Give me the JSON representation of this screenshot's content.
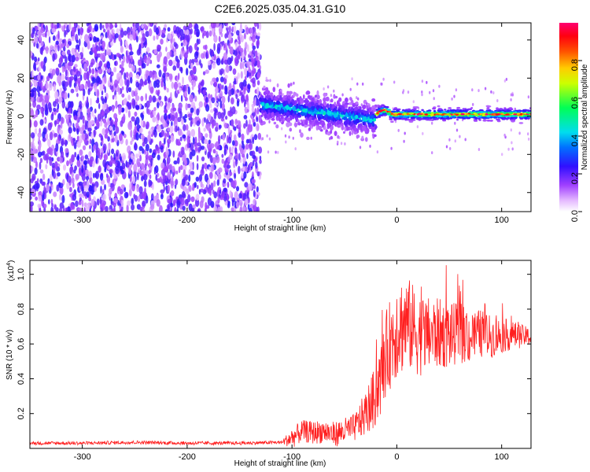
{
  "figure_title": "C2E6.2025.035.04.31.G10",
  "chart_data": [
    {
      "type": "heatmap",
      "title": "C2E6.2025.035.04.31.G10",
      "xlabel": "Height of straight line (km)",
      "ylabel": "Frequency (Hz)",
      "xlim": [
        -350,
        128
      ],
      "ylim": [
        -50,
        49
      ],
      "xticks": [
        -300,
        -200,
        -100,
        0,
        100
      ],
      "yticks": [
        -40,
        -20,
        0,
        20,
        40
      ],
      "colorbar": {
        "label": "Normalized spectral amplitude",
        "range": [
          0.0,
          1.0
        ],
        "ticks": [
          "0.0",
          "0.2",
          "0.4",
          "0.6",
          "0.8"
        ],
        "colors": [
          "#ffffff",
          "#d070ff",
          "#8000ff",
          "#0000ff",
          "#00ccff",
          "#00ff60",
          "#ffff00",
          "#ff6000",
          "#ff0000",
          "#ff0080"
        ]
      },
      "regions": [
        {
          "name": "noise",
          "x_range": [
            -350,
            -130
          ],
          "freq_range": [
            -50,
            49
          ],
          "amplitude_range": [
            0.05,
            0.25
          ]
        },
        {
          "name": "transition",
          "x_range": [
            -130,
            -20
          ],
          "center_freq_start": 6,
          "center_freq_end": -2,
          "spread_hz": 10,
          "amplitude_range": [
            0.2,
            0.45
          ]
        },
        {
          "name": "signal",
          "x_range": [
            -20,
            128
          ],
          "center_freq": 1,
          "spread_hz": 3,
          "amplitude_range": [
            0.6,
            1.0
          ]
        }
      ]
    },
    {
      "type": "line",
      "xlabel": "Height of straight line (km)",
      "ylabel": "SNR (10 * v/v)",
      "y_scale_label": "(x10",
      "y_scale_exponent": "4",
      "xlim": [
        -350,
        128
      ],
      "ylim": [
        0,
        1.08
      ],
      "xticks": [
        -300,
        -200,
        -100,
        0,
        100
      ],
      "yticks": [
        0.2,
        0.4,
        0.6,
        0.8,
        1.0
      ],
      "series_color": "#ff2020",
      "points": [
        {
          "x": -350,
          "y": 0.03
        },
        {
          "x": -300,
          "y": 0.03
        },
        {
          "x": -250,
          "y": 0.035
        },
        {
          "x": -200,
          "y": 0.03
        },
        {
          "x": -150,
          "y": 0.03
        },
        {
          "x": -110,
          "y": 0.035
        },
        {
          "x": -100,
          "y": 0.06
        },
        {
          "x": -90,
          "y": 0.1
        },
        {
          "x": -80,
          "y": 0.09
        },
        {
          "x": -70,
          "y": 0.1
        },
        {
          "x": -60,
          "y": 0.08
        },
        {
          "x": -50,
          "y": 0.1
        },
        {
          "x": -40,
          "y": 0.12
        },
        {
          "x": -30,
          "y": 0.2
        },
        {
          "x": -20,
          "y": 0.3
        },
        {
          "x": -15,
          "y": 0.4
        },
        {
          "x": -10,
          "y": 0.55
        },
        {
          "x": -5,
          "y": 0.62
        },
        {
          "x": 0,
          "y": 0.7
        },
        {
          "x": 10,
          "y": 0.72
        },
        {
          "x": 20,
          "y": 0.66
        },
        {
          "x": 30,
          "y": 0.65
        },
        {
          "x": 40,
          "y": 0.66
        },
        {
          "x": 50,
          "y": 0.65
        },
        {
          "x": 60,
          "y": 0.66
        },
        {
          "x": 70,
          "y": 0.64
        },
        {
          "x": 80,
          "y": 0.66
        },
        {
          "x": 90,
          "y": 0.64
        },
        {
          "x": 100,
          "y": 0.65
        },
        {
          "x": 110,
          "y": 0.65
        },
        {
          "x": 128,
          "y": 0.64
        }
      ],
      "noise_amplitude": [
        {
          "x": -350,
          "a": 0.01
        },
        {
          "x": -110,
          "a": 0.01
        },
        {
          "x": -100,
          "a": 0.06
        },
        {
          "x": -40,
          "a": 0.08
        },
        {
          "x": -20,
          "a": 0.18
        },
        {
          "x": 0,
          "a": 0.3
        },
        {
          "x": 30,
          "a": 0.22
        },
        {
          "x": 80,
          "a": 0.14
        },
        {
          "x": 128,
          "a": 0.05
        }
      ]
    }
  ]
}
